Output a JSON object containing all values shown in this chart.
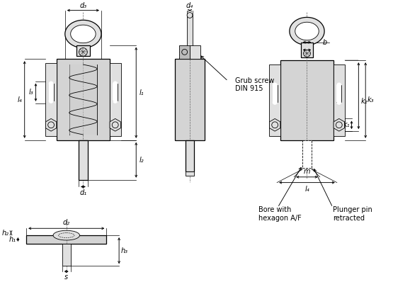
{
  "bg_color": "#ffffff",
  "line_color": "#000000",
  "annotations": {
    "d3": "d₃",
    "d4": "d₄",
    "d1": "d₁",
    "d2": "d₂",
    "l1": "l₁",
    "l2": "l₂",
    "l3": "l₃",
    "l4": "l₄",
    "h1": "h₁",
    "h2": "h₂",
    "h3": "h₃",
    "b": "b",
    "k1": "k₁",
    "k2": "k₂",
    "k3": "k₃",
    "m": "m",
    "s": "s"
  },
  "notes": {
    "grub_screw": "Grub screw\nDIN 915",
    "bore": "Bore with\nhexagon A/F",
    "plunger": "Plunger pin\nretracted"
  },
  "font_size": 7.0
}
